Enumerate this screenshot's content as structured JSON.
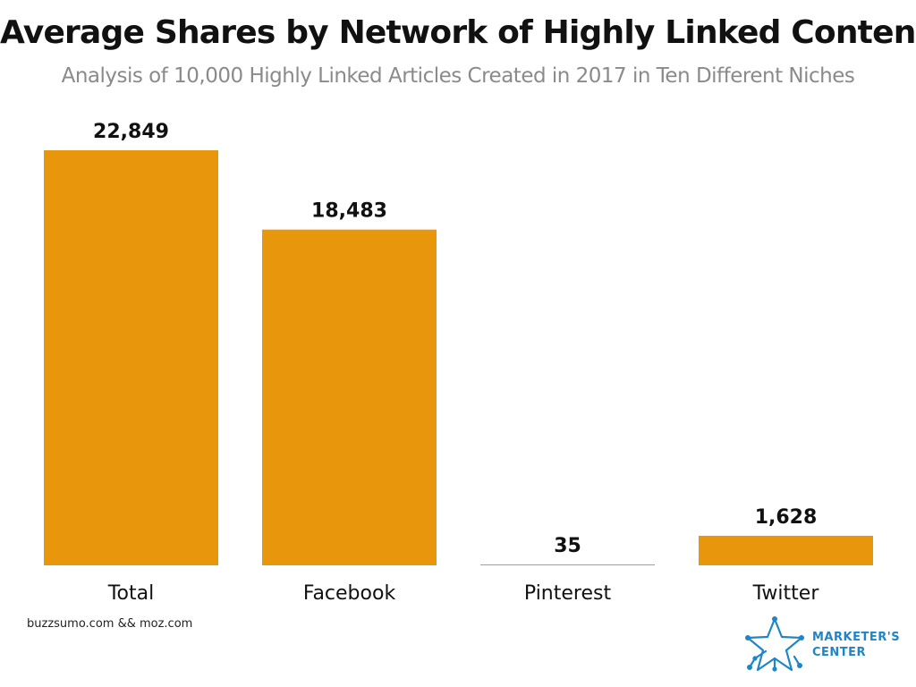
{
  "title": "Average Shares by Network of Highly Linked Content",
  "subtitle": "Analysis of 10,000 Highly Linked Articles Created in 2017 in Ten Different Niches",
  "source": "buzzsumo.com && moz.com",
  "logo": {
    "line1": "MARKETER'S",
    "line2": "CENTER",
    "icon": "star-network-icon",
    "color": "#1e86c8"
  },
  "colors": {
    "bar": "#e8960c",
    "text": "#111111",
    "subtitle": "#8a8a8a"
  },
  "chart_data": {
    "type": "bar",
    "title": "Average Shares by Network of Highly Linked Content",
    "subtitle": "Analysis of 10,000 Highly Linked Articles Created in 2017 in Ten Different Niches",
    "categories": [
      "Total",
      "Facebook",
      "Pinterest",
      "Twitter"
    ],
    "values": [
      22849,
      18483,
      35,
      1628
    ],
    "value_labels": [
      "22,849",
      "18,483",
      "35",
      "1,628"
    ],
    "xlabel": "",
    "ylabel": "",
    "ylim": [
      0,
      22849
    ],
    "grid": false,
    "legend": "none"
  }
}
